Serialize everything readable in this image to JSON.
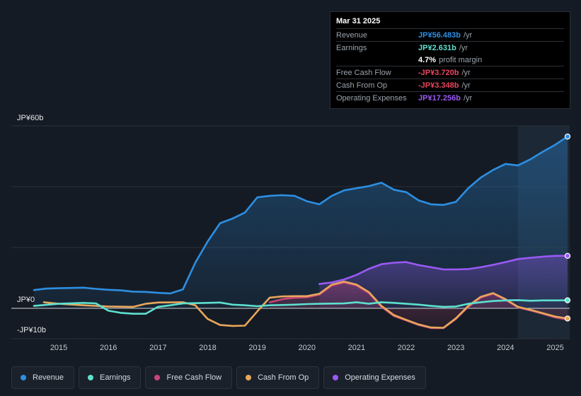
{
  "tooltip": {
    "date": "Mar 31 2025",
    "rows": [
      {
        "label": "Revenue",
        "value": "JP¥56.483b",
        "unit": "/yr",
        "color": "#2d8fe3"
      },
      {
        "label": "Earnings",
        "value": "JP¥2.631b",
        "unit": "/yr",
        "color": "#5ee0cf"
      },
      {
        "label": "",
        "value": "4.7%",
        "unit": "profit margin",
        "color": "#ffffff"
      },
      {
        "label": "Free Cash Flow",
        "value": "-JP¥3.720b",
        "unit": "/yr",
        "color": "#e8475f"
      },
      {
        "label": "Cash From Op",
        "value": "-JP¥3.348b",
        "unit": "/yr",
        "color": "#e8475f"
      },
      {
        "label": "Operating Expenses",
        "value": "JP¥17.256b",
        "unit": "/yr",
        "color": "#9b59f5"
      }
    ]
  },
  "legend": [
    {
      "label": "Revenue",
      "color": "#2d8fe3"
    },
    {
      "label": "Earnings",
      "color": "#5ee0cf"
    },
    {
      "label": "Free Cash Flow",
      "color": "#c8457a"
    },
    {
      "label": "Cash From Op",
      "color": "#e8a75b"
    },
    {
      "label": "Operating Expenses",
      "color": "#9b59f5"
    }
  ],
  "chart_data": {
    "type": "line",
    "title": "",
    "y_tick_labels": [
      {
        "label": "JP¥60b",
        "value": 60
      },
      {
        "label": "JP¥0",
        "value": 0
      },
      {
        "label": "-JP¥10b",
        "value": -10
      }
    ],
    "ylim": [
      -10,
      60
    ],
    "xlim": [
      2014.5,
      2025.25
    ],
    "x_tick_labels": [
      "2015",
      "2016",
      "2017",
      "2018",
      "2019",
      "2020",
      "2021",
      "2022",
      "2023",
      "2024",
      "2025"
    ],
    "highlight_from": 2024.25,
    "series": [
      {
        "name": "Revenue",
        "color": "#2d8fe3",
        "fill": true,
        "points": [
          [
            2014.5,
            6
          ],
          [
            2014.75,
            6.5
          ],
          [
            2015.0,
            6.6
          ],
          [
            2015.25,
            6.7
          ],
          [
            2015.5,
            6.8
          ],
          [
            2015.75,
            6.4
          ],
          [
            2016.0,
            6.1
          ],
          [
            2016.25,
            5.9
          ],
          [
            2016.5,
            5.5
          ],
          [
            2016.75,
            5.4
          ],
          [
            2017.0,
            5.1
          ],
          [
            2017.25,
            4.9
          ],
          [
            2017.5,
            6.2
          ],
          [
            2017.75,
            15
          ],
          [
            2018.0,
            22
          ],
          [
            2018.25,
            28
          ],
          [
            2018.5,
            29.5
          ],
          [
            2018.75,
            31.5
          ],
          [
            2019.0,
            36.5
          ],
          [
            2019.25,
            37
          ],
          [
            2019.5,
            37.2
          ],
          [
            2019.75,
            37
          ],
          [
            2020.0,
            35.2
          ],
          [
            2020.25,
            34.2
          ],
          [
            2020.5,
            37
          ],
          [
            2020.75,
            38.8
          ],
          [
            2021.0,
            39.5
          ],
          [
            2021.25,
            40.2
          ],
          [
            2021.5,
            41.3
          ],
          [
            2021.75,
            39
          ],
          [
            2022.0,
            38.2
          ],
          [
            2022.25,
            35.5
          ],
          [
            2022.5,
            34.2
          ],
          [
            2022.75,
            34
          ],
          [
            2023.0,
            35
          ],
          [
            2023.25,
            39.5
          ],
          [
            2023.5,
            43
          ],
          [
            2023.75,
            45.5
          ],
          [
            2024.0,
            47.5
          ],
          [
            2024.25,
            47
          ],
          [
            2024.5,
            49
          ],
          [
            2024.75,
            51.5
          ],
          [
            2025.0,
            53.8
          ],
          [
            2025.25,
            56.483
          ]
        ]
      },
      {
        "name": "Operating Expenses",
        "color": "#9b59f5",
        "fill": true,
        "points": [
          [
            2020.25,
            8
          ],
          [
            2020.5,
            8.5
          ],
          [
            2020.75,
            9.5
          ],
          [
            2021.0,
            11
          ],
          [
            2021.25,
            13
          ],
          [
            2021.5,
            14.5
          ],
          [
            2021.75,
            15
          ],
          [
            2022.0,
            15.2
          ],
          [
            2022.25,
            14.2
          ],
          [
            2022.5,
            13.5
          ],
          [
            2022.75,
            12.8
          ],
          [
            2023.0,
            12.8
          ],
          [
            2023.25,
            12.9
          ],
          [
            2023.5,
            13.5
          ],
          [
            2023.75,
            14.3
          ],
          [
            2024.0,
            15.2
          ],
          [
            2024.25,
            16.2
          ],
          [
            2024.5,
            16.6
          ],
          [
            2024.75,
            17
          ],
          [
            2025.0,
            17.256
          ],
          [
            2025.25,
            17.256
          ]
        ]
      },
      {
        "name": "Free Cash Flow",
        "color": "#c8457a",
        "fill": true,
        "points": [
          [
            2019.25,
            2
          ],
          [
            2019.5,
            3
          ],
          [
            2019.75,
            3.5
          ],
          [
            2020.0,
            3.6
          ],
          [
            2020.25,
            4.5
          ],
          [
            2020.5,
            7.5
          ],
          [
            2020.75,
            8.5
          ],
          [
            2021.0,
            7.5
          ],
          [
            2021.25,
            5
          ],
          [
            2021.5,
            0.5
          ],
          [
            2021.75,
            -2.5
          ],
          [
            2022.0,
            -4
          ],
          [
            2022.25,
            -5.5
          ],
          [
            2022.5,
            -6.5
          ],
          [
            2022.75,
            -6.5
          ],
          [
            2023.0,
            -3.5
          ],
          [
            2023.25,
            0.5
          ],
          [
            2023.5,
            3.5
          ],
          [
            2023.75,
            4.8
          ],
          [
            2024.0,
            2.8
          ],
          [
            2024.25,
            0.3
          ],
          [
            2024.5,
            -0.7
          ],
          [
            2024.75,
            -1.8
          ],
          [
            2025.0,
            -3
          ],
          [
            2025.25,
            -3.72
          ]
        ]
      },
      {
        "name": "Cash From Op",
        "color": "#e8a75b",
        "fill": false,
        "points": [
          [
            2014.7,
            2
          ],
          [
            2015.0,
            1.5
          ],
          [
            2015.5,
            1
          ],
          [
            2016.0,
            0.6
          ],
          [
            2016.5,
            0.5
          ],
          [
            2016.75,
            1.5
          ],
          [
            2017.0,
            1.9
          ],
          [
            2017.5,
            2
          ],
          [
            2017.75,
            1
          ],
          [
            2018.0,
            -3.5
          ],
          [
            2018.25,
            -5.5
          ],
          [
            2018.5,
            -5.8
          ],
          [
            2018.75,
            -5.7
          ],
          [
            2019.0,
            -1
          ],
          [
            2019.25,
            3.5
          ],
          [
            2019.5,
            3.9
          ],
          [
            2019.75,
            4
          ],
          [
            2020.0,
            4
          ],
          [
            2020.25,
            4.8
          ],
          [
            2020.5,
            7.8
          ],
          [
            2020.75,
            8.8
          ],
          [
            2021.0,
            7.8
          ],
          [
            2021.25,
            5.3
          ],
          [
            2021.5,
            0.8
          ],
          [
            2021.75,
            -2.2
          ],
          [
            2022.0,
            -3.8
          ],
          [
            2022.25,
            -5.3
          ],
          [
            2022.5,
            -6.3
          ],
          [
            2022.75,
            -6.4
          ],
          [
            2023.0,
            -3.3
          ],
          [
            2023.25,
            0.8
          ],
          [
            2023.5,
            3.8
          ],
          [
            2023.75,
            5
          ],
          [
            2024.0,
            3
          ],
          [
            2024.25,
            0.5
          ],
          [
            2024.5,
            -0.5
          ],
          [
            2024.75,
            -1.6
          ],
          [
            2025.0,
            -2.7
          ],
          [
            2025.25,
            -3.348
          ]
        ]
      },
      {
        "name": "Earnings",
        "color": "#5ee0cf",
        "fill": false,
        "points": [
          [
            2014.5,
            0.8
          ],
          [
            2015.0,
            1.5
          ],
          [
            2015.5,
            1.8
          ],
          [
            2015.75,
            1.6
          ],
          [
            2016.0,
            -0.8
          ],
          [
            2016.25,
            -1.5
          ],
          [
            2016.5,
            -1.8
          ],
          [
            2016.75,
            -1.8
          ],
          [
            2017.0,
            0.5
          ],
          [
            2017.25,
            1
          ],
          [
            2017.5,
            1.6
          ],
          [
            2018.0,
            1.8
          ],
          [
            2018.25,
            1.9
          ],
          [
            2018.5,
            1.2
          ],
          [
            2018.75,
            1
          ],
          [
            2019.0,
            0.7
          ],
          [
            2019.25,
            1
          ],
          [
            2019.5,
            1.1
          ],
          [
            2019.75,
            1.2
          ],
          [
            2020.0,
            1.4
          ],
          [
            2020.25,
            1.5
          ],
          [
            2020.75,
            1.6
          ],
          [
            2021.0,
            2
          ],
          [
            2021.25,
            1.5
          ],
          [
            2021.5,
            2
          ],
          [
            2021.75,
            1.8
          ],
          [
            2022.0,
            1.5
          ],
          [
            2022.25,
            1.2
          ],
          [
            2022.5,
            0.8
          ],
          [
            2022.75,
            0.5
          ],
          [
            2023.0,
            0.6
          ],
          [
            2023.25,
            1.5
          ],
          [
            2023.5,
            2
          ],
          [
            2023.75,
            2.4
          ],
          [
            2024.0,
            2.6
          ],
          [
            2024.25,
            2.7
          ],
          [
            2024.5,
            2.5
          ],
          [
            2024.75,
            2.6
          ],
          [
            2025.0,
            2.6
          ],
          [
            2025.25,
            2.631
          ]
        ]
      }
    ]
  }
}
